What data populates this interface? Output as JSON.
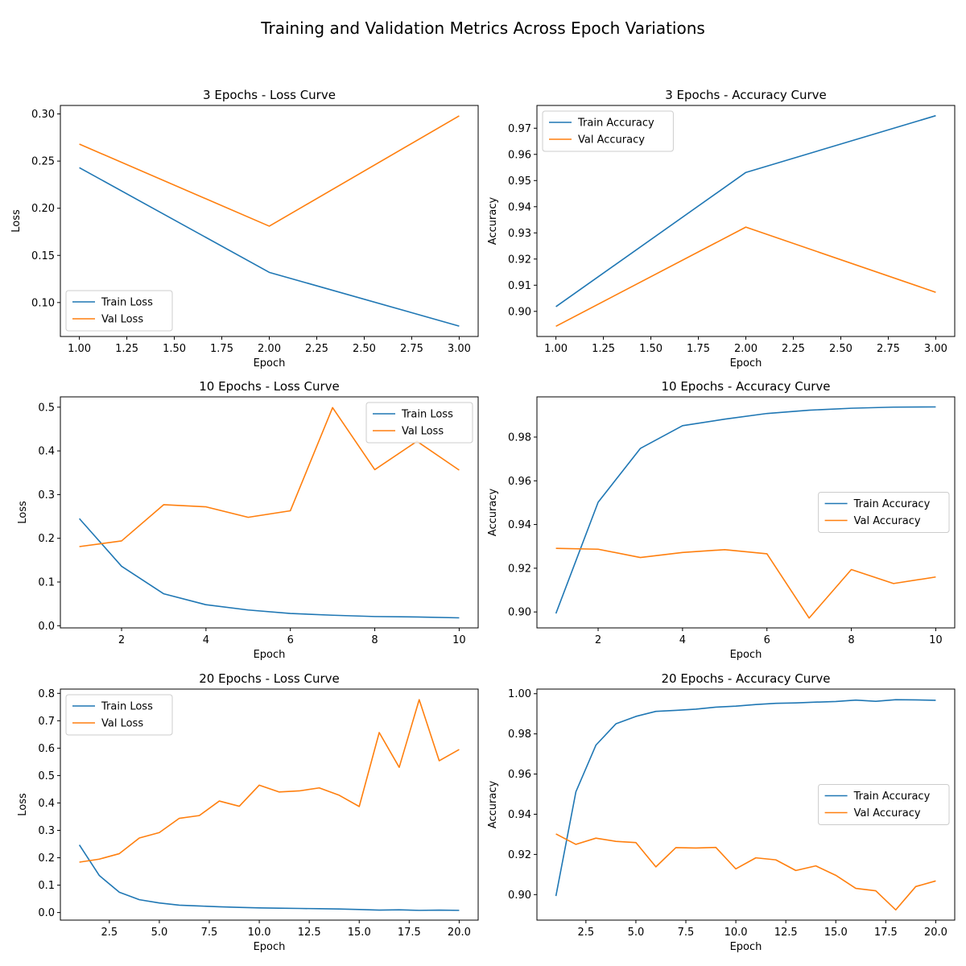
{
  "figure": {
    "title": "Training and Validation Metrics Across Epoch Variations"
  },
  "colors": {
    "train": "#1f77b4",
    "val": "#ff7f0e"
  },
  "chart_data": [
    {
      "type": "line",
      "title": "3 Epochs - Loss Curve",
      "xlabel": "Epoch",
      "ylabel": "Loss",
      "xlim": [
        0.9,
        3.1
      ],
      "ylim": [
        0.064,
        0.309
      ],
      "xticks": [
        1.0,
        1.25,
        1.5,
        1.75,
        2.0,
        2.25,
        2.5,
        2.75,
        3.0
      ],
      "xtick_labels": [
        "1.00",
        "1.25",
        "1.50",
        "1.75",
        "2.00",
        "2.25",
        "2.50",
        "2.75",
        "3.00"
      ],
      "yticks": [
        0.1,
        0.15,
        0.2,
        0.25,
        0.3
      ],
      "ytick_labels": [
        "0.10",
        "0.15",
        "0.20",
        "0.25",
        "0.30"
      ],
      "legend": "bottom-left",
      "grid": false,
      "x": [
        1,
        2,
        3
      ],
      "series": [
        {
          "name": "Train Loss",
          "color": "#1f77b4",
          "values": [
            0.243,
            0.132,
            0.075
          ]
        },
        {
          "name": "Val Loss",
          "color": "#ff7f0e",
          "values": [
            0.268,
            0.181,
            0.298
          ]
        }
      ]
    },
    {
      "type": "line",
      "title": "3 Epochs - Accuracy Curve",
      "xlabel": "Epoch",
      "ylabel": "Accuracy",
      "xlim": [
        0.9,
        3.1
      ],
      "ylim": [
        0.8904,
        0.9787
      ],
      "xticks": [
        1.0,
        1.25,
        1.5,
        1.75,
        2.0,
        2.25,
        2.5,
        2.75,
        3.0
      ],
      "xtick_labels": [
        "1.00",
        "1.25",
        "1.50",
        "1.75",
        "2.00",
        "2.25",
        "2.50",
        "2.75",
        "3.00"
      ],
      "yticks": [
        0.9,
        0.91,
        0.92,
        0.93,
        0.94,
        0.95,
        0.96,
        0.97
      ],
      "ytick_labels": [
        "0.90",
        "0.91",
        "0.92",
        "0.93",
        "0.94",
        "0.95",
        "0.96",
        "0.97"
      ],
      "legend": "top-left",
      "grid": false,
      "x": [
        1,
        2,
        3
      ],
      "series": [
        {
          "name": "Train Accuracy",
          "color": "#1f77b4",
          "values": [
            0.9018,
            0.9531,
            0.9748
          ]
        },
        {
          "name": "Val Accuracy",
          "color": "#ff7f0e",
          "values": [
            0.8943,
            0.9322,
            0.9073
          ]
        }
      ]
    },
    {
      "type": "line",
      "title": "10 Epochs - Loss Curve",
      "xlabel": "Epoch",
      "ylabel": "Loss",
      "xlim": [
        0.55,
        10.45
      ],
      "ylim": [
        -0.005,
        0.5236
      ],
      "xticks": [
        2,
        4,
        6,
        8,
        10
      ],
      "xtick_labels": [
        "2",
        "4",
        "6",
        "8",
        "10"
      ],
      "yticks": [
        0.0,
        0.1,
        0.2,
        0.3,
        0.4,
        0.5
      ],
      "ytick_labels": [
        "0.0",
        "0.1",
        "0.2",
        "0.3",
        "0.4",
        "0.5"
      ],
      "legend": "top-right",
      "grid": false,
      "x": [
        1,
        2,
        3,
        4,
        5,
        6,
        7,
        8,
        9,
        10
      ],
      "series": [
        {
          "name": "Train Loss",
          "color": "#1f77b4",
          "values": [
            0.245,
            0.136,
            0.073,
            0.048,
            0.036,
            0.028,
            0.024,
            0.021,
            0.02,
            0.018
          ]
        },
        {
          "name": "Val Loss",
          "color": "#ff7f0e",
          "values": [
            0.181,
            0.194,
            0.277,
            0.272,
            0.248,
            0.263,
            0.499,
            0.357,
            0.422,
            0.356
          ]
        }
      ]
    },
    {
      "type": "line",
      "title": "10 Epochs - Accuracy Curve",
      "xlabel": "Epoch",
      "ylabel": "Accuracy",
      "xlim": [
        0.55,
        10.45
      ],
      "ylim": [
        0.8927,
        0.9984
      ],
      "xticks": [
        2,
        4,
        6,
        8,
        10
      ],
      "xtick_labels": [
        "2",
        "4",
        "6",
        "8",
        "10"
      ],
      "yticks": [
        0.9,
        0.92,
        0.94,
        0.96,
        0.98
      ],
      "ytick_labels": [
        "0.90",
        "0.92",
        "0.94",
        "0.96",
        "0.98"
      ],
      "legend": "center-right",
      "grid": false,
      "x": [
        1,
        2,
        3,
        4,
        5,
        6,
        7,
        8,
        9,
        10
      ],
      "series": [
        {
          "name": "Train Accuracy",
          "color": "#1f77b4",
          "values": [
            0.8993,
            0.9502,
            0.9748,
            0.9852,
            0.9882,
            0.9908,
            0.9923,
            0.9932,
            0.9937,
            0.9938
          ]
        },
        {
          "name": "Val Accuracy",
          "color": "#ff7f0e",
          "values": [
            0.9291,
            0.9287,
            0.9249,
            0.9272,
            0.9285,
            0.9266,
            0.8972,
            0.9194,
            0.913,
            0.916
          ]
        }
      ]
    },
    {
      "type": "line",
      "title": "20 Epochs - Loss Curve",
      "xlabel": "Epoch",
      "ylabel": "Loss",
      "xlim": [
        0.05,
        20.95
      ],
      "ylim": [
        -0.0276,
        0.8156
      ],
      "xticks": [
        2.5,
        5.0,
        7.5,
        10.0,
        12.5,
        15.0,
        17.5,
        20.0
      ],
      "xtick_labels": [
        "2.5",
        "5.0",
        "7.5",
        "10.0",
        "12.5",
        "15.0",
        "17.5",
        "20.0"
      ],
      "yticks": [
        0.0,
        0.1,
        0.2,
        0.3,
        0.4,
        0.5,
        0.6,
        0.7,
        0.8
      ],
      "ytick_labels": [
        "0.0",
        "0.1",
        "0.2",
        "0.3",
        "0.4",
        "0.5",
        "0.6",
        "0.7",
        "0.8"
      ],
      "legend": "top-left",
      "grid": false,
      "x": [
        1,
        2,
        3,
        4,
        5,
        6,
        7,
        8,
        9,
        10,
        11,
        12,
        13,
        14,
        15,
        16,
        17,
        18,
        19,
        20
      ],
      "series": [
        {
          "name": "Train Loss",
          "color": "#1f77b4",
          "values": [
            0.247,
            0.135,
            0.074,
            0.047,
            0.035,
            0.027,
            0.024,
            0.021,
            0.019,
            0.017,
            0.016,
            0.015,
            0.014,
            0.013,
            0.011,
            0.009,
            0.01,
            0.008,
            0.009,
            0.008
          ]
        },
        {
          "name": "Val Loss",
          "color": "#ff7f0e",
          "values": [
            0.184,
            0.195,
            0.215,
            0.272,
            0.292,
            0.344,
            0.354,
            0.407,
            0.388,
            0.465,
            0.44,
            0.444,
            0.455,
            0.428,
            0.387,
            0.657,
            0.53,
            0.777,
            0.554,
            0.595
          ]
        }
      ]
    },
    {
      "type": "line",
      "title": "20 Epochs - Accuracy Curve",
      "xlabel": "Epoch",
      "ylabel": "Accuracy",
      "xlim": [
        0.05,
        20.95
      ],
      "ylim": [
        0.8873,
        1.0023
      ],
      "xticks": [
        2.5,
        5.0,
        7.5,
        10.0,
        12.5,
        15.0,
        17.5,
        20.0
      ],
      "xtick_labels": [
        "2.5",
        "5.0",
        "7.5",
        "10.0",
        "12.5",
        "15.0",
        "17.5",
        "20.0"
      ],
      "yticks": [
        0.9,
        0.92,
        0.94,
        0.96,
        0.98,
        1.0
      ],
      "ytick_labels": [
        "0.90",
        "0.92",
        "0.94",
        "0.96",
        "0.98",
        "1.00"
      ],
      "legend": "center-right",
      "grid": false,
      "x": [
        1,
        2,
        3,
        4,
        5,
        6,
        7,
        8,
        9,
        10,
        11,
        12,
        13,
        14,
        15,
        16,
        17,
        18,
        19,
        20
      ],
      "series": [
        {
          "name": "Train Accuracy",
          "color": "#1f77b4",
          "values": [
            0.8993,
            0.9512,
            0.9744,
            0.985,
            0.9887,
            0.9912,
            0.9917,
            0.9923,
            0.9933,
            0.9938,
            0.9946,
            0.9952,
            0.9954,
            0.9958,
            0.9961,
            0.9968,
            0.9962,
            0.997,
            0.9969,
            0.9967
          ]
        },
        {
          "name": "Val Accuracy",
          "color": "#ff7f0e",
          "values": [
            0.9302,
            0.925,
            0.9281,
            0.9265,
            0.9259,
            0.9138,
            0.9234,
            0.9232,
            0.9235,
            0.9128,
            0.9183,
            0.9173,
            0.912,
            0.9143,
            0.9096,
            0.9031,
            0.9019,
            0.8924,
            0.904,
            0.9068
          ]
        }
      ]
    }
  ]
}
